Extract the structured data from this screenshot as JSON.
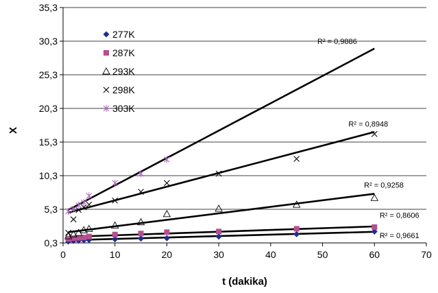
{
  "chart_data": {
    "type": "scatter",
    "xlabel": "t (dakika)",
    "ylabel": "X",
    "xlim": [
      0,
      70
    ],
    "ylim": [
      0.3,
      35.3
    ],
    "xticks": [
      0,
      10,
      20,
      30,
      40,
      50,
      60,
      70
    ],
    "yticks": [
      "0,3",
      "5,3",
      "10,3",
      "15,3",
      "20,3",
      "25,3",
      "30,3",
      "35,3"
    ],
    "legend_position": "top-left",
    "series": [
      {
        "name": "277K",
        "marker": "diamond",
        "color": "#1f2d8c",
        "x": [
          1,
          2,
          3,
          4,
          5,
          10,
          15,
          20,
          30,
          45,
          60
        ],
        "y": [
          0.5,
          0.6,
          0.65,
          0.7,
          0.75,
          0.85,
          0.95,
          1.0,
          1.25,
          1.6,
          2.0
        ],
        "trend": {
          "x1": 1,
          "y1": 0.7,
          "x2": 60,
          "y2": 1.95
        },
        "r2_label": "R² = 0,9661",
        "r2_at": [
          61,
          1.0
        ]
      },
      {
        "name": "287K",
        "marker": "square",
        "color": "#b5508f",
        "x": [
          1,
          2,
          3,
          4,
          5,
          10,
          15,
          20,
          30,
          45,
          60
        ],
        "y": [
          0.9,
          1.0,
          1.05,
          1.1,
          1.25,
          1.55,
          1.7,
          1.9,
          2.0,
          2.4,
          2.65
        ],
        "trend": {
          "x1": 1,
          "y1": 1.2,
          "x2": 60,
          "y2": 2.75
        },
        "r2_label": "R² = 0,8606",
        "r2_at": [
          61,
          4.0
        ]
      },
      {
        "name": "293K",
        "marker": "triangle",
        "color": "#000000",
        "x": [
          1,
          2,
          3,
          4,
          5,
          10,
          15,
          20,
          30,
          45,
          60
        ],
        "y": [
          1.3,
          1.6,
          1.8,
          2.2,
          2.4,
          2.9,
          3.4,
          4.6,
          5.4,
          6.0,
          7.0
        ],
        "trend": {
          "x1": 1,
          "y1": 1.9,
          "x2": 60,
          "y2": 7.6
        },
        "r2_label": "R² = 0,9258",
        "r2_at": [
          58,
          8.5
        ]
      },
      {
        "name": "298K",
        "marker": "x",
        "color": "#000000",
        "x": [
          1,
          2,
          3,
          4,
          5,
          10,
          15,
          20,
          30,
          45,
          60
        ],
        "y": [
          1.8,
          3.8,
          5.2,
          5.6,
          6.0,
          6.6,
          7.9,
          9.2,
          10.6,
          12.8,
          16.5
        ],
        "trend": {
          "x1": 1,
          "y1": 4.8,
          "x2": 60,
          "y2": 16.8
        },
        "r2_label": "R² = 0,8948",
        "r2_at": [
          55,
          17.6
        ]
      },
      {
        "name": "303K",
        "marker": "asterisk",
        "color": "#b06ac8",
        "x": [
          1,
          2,
          3,
          4,
          5,
          10,
          15,
          20
        ],
        "y": [
          5.0,
          5.3,
          5.9,
          6.3,
          7.3,
          9.2,
          10.6,
          12.7
        ],
        "trend": {
          "x1": 1,
          "y1": 5.2,
          "x2": 60,
          "y2": 29.2
        },
        "r2_label": "R² = 0,9886",
        "r2_at": [
          49,
          29.9
        ]
      }
    ]
  }
}
